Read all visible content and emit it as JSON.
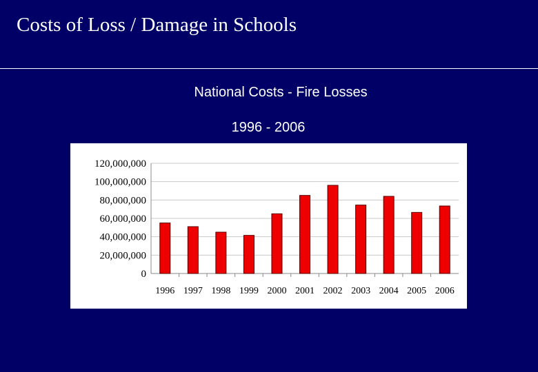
{
  "slide": {
    "title": "Costs of Loss / Damage in Schools",
    "subtitle_line1": "National Costs - Fire Losses",
    "subtitle_line2": "1996  -  2006"
  },
  "colors": {
    "background": "#000066",
    "bar_fill": "#ee0000",
    "bar_edge": "#550000"
  },
  "chart_data": {
    "type": "bar",
    "categories": [
      "1996",
      "1997",
      "1998",
      "1999",
      "2000",
      "2001",
      "2002",
      "2003",
      "2004",
      "2005",
      "2006"
    ],
    "values": [
      55000000,
      51000000,
      45000000,
      41500000,
      65000000,
      85000000,
      96000000,
      74500000,
      84000000,
      66500000,
      73500000
    ],
    "ylim": [
      0,
      120000000
    ],
    "yticks": [
      "0",
      "20,000,000",
      "40,000,000",
      "60,000,000",
      "80,000,000",
      "100,000,000",
      "120,000,000"
    ],
    "grid": true
  }
}
